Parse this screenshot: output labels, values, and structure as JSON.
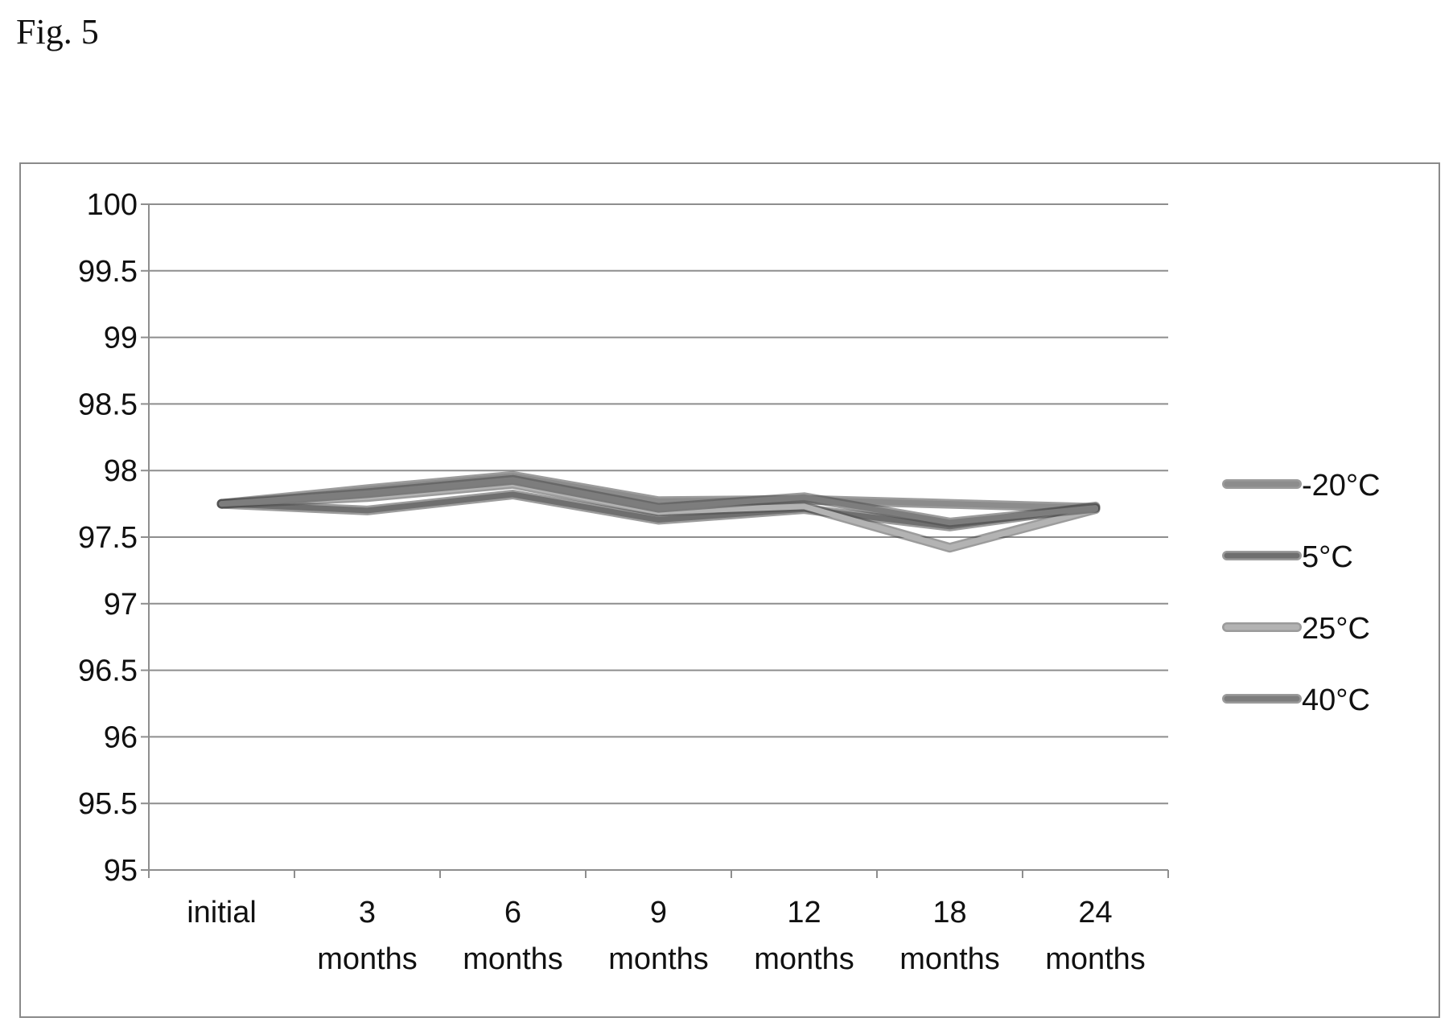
{
  "figure_label": "Fig. 5",
  "chart_data": {
    "type": "line",
    "title": "",
    "xlabel": "",
    "ylabel": "",
    "categories": [
      [
        "initial"
      ],
      [
        "3",
        "months"
      ],
      [
        "6",
        "months"
      ],
      [
        "9",
        "months"
      ],
      [
        "12",
        "months"
      ],
      [
        "18",
        "months"
      ],
      [
        "24",
        "months"
      ]
    ],
    "ylim": [
      95,
      100
    ],
    "yticks": [
      "100",
      "99.5",
      "99",
      "98.5",
      "98",
      "97.5",
      "97",
      "96.5",
      "96",
      "95.5",
      "95"
    ],
    "grid": true,
    "legend_position": "right",
    "series": [
      {
        "name": "-20°C",
        "values": [
          97.75,
          97.86,
          97.96,
          97.77,
          97.78,
          97.75,
          97.72
        ],
        "color": "#8c8c8c"
      },
      {
        "name": "5°C",
        "values": [
          97.75,
          97.7,
          97.82,
          97.63,
          97.71,
          97.58,
          97.73
        ],
        "color": "#6f6f6f"
      },
      {
        "name": "25°C",
        "values": [
          97.75,
          97.8,
          97.9,
          97.69,
          97.73,
          97.42,
          97.71
        ],
        "color": "#b3b3b3"
      },
      {
        "name": "40°C",
        "values": [
          97.75,
          97.83,
          97.93,
          97.72,
          97.8,
          97.61,
          97.72
        ],
        "color": "#7d7d7d"
      }
    ]
  }
}
